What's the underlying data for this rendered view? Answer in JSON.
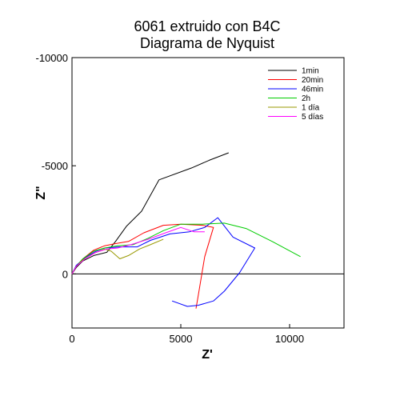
{
  "chart_data": {
    "type": "line",
    "title": "6061 extruido con B4C",
    "subtitle": "Diagrama de Nyquist",
    "xlabel": "Z'",
    "ylabel": "Z\"",
    "xlim": [
      0,
      12500
    ],
    "ylim": [
      2500,
      -10000
    ],
    "x_ticks": [
      0,
      5000,
      10000
    ],
    "x_tick_labels": [
      "0",
      "5000",
      "10000"
    ],
    "y_ticks": [
      -10000,
      -5000,
      0
    ],
    "y_tick_labels": [
      "-10000",
      "-5000",
      "0"
    ],
    "zero_line": 0,
    "grid": false,
    "legend_position": "top-right",
    "series": [
      {
        "name": "1min",
        "color": "#000000",
        "points": [
          [
            0,
            0
          ],
          [
            200,
            -300
          ],
          [
            500,
            -600
          ],
          [
            1000,
            -850
          ],
          [
            1600,
            -1000
          ],
          [
            2000,
            -1500
          ],
          [
            2500,
            -2200
          ],
          [
            3200,
            -2900
          ],
          [
            4000,
            -4350
          ],
          [
            5500,
            -4900
          ],
          [
            6300,
            -5250
          ],
          [
            7200,
            -5600
          ]
        ]
      },
      {
        "name": "20min",
        "color": "#ff0000",
        "points": [
          [
            0,
            0
          ],
          [
            200,
            -350
          ],
          [
            500,
            -700
          ],
          [
            1000,
            -1100
          ],
          [
            1500,
            -1300
          ],
          [
            2000,
            -1400
          ],
          [
            2600,
            -1500
          ],
          [
            3300,
            -1900
          ],
          [
            4200,
            -2250
          ],
          [
            5000,
            -2300
          ],
          [
            6000,
            -2250
          ],
          [
            6500,
            -2150
          ],
          [
            6100,
            -800
          ],
          [
            5800,
            1000
          ],
          [
            5700,
            1600
          ]
        ]
      },
      {
        "name": "46min",
        "color": "#0000ff",
        "points": [
          [
            0,
            0
          ],
          [
            200,
            -400
          ],
          [
            600,
            -750
          ],
          [
            1100,
            -1050
          ],
          [
            1500,
            -1200
          ],
          [
            2200,
            -1250
          ],
          [
            3000,
            -1250
          ],
          [
            3600,
            -1550
          ],
          [
            4500,
            -1850
          ],
          [
            5400,
            -1950
          ],
          [
            6100,
            -2150
          ],
          [
            6700,
            -2600
          ],
          [
            7400,
            -1700
          ],
          [
            8400,
            -1200
          ],
          [
            7700,
            -50
          ],
          [
            7000,
            800
          ],
          [
            6500,
            1250
          ],
          [
            5800,
            1450
          ],
          [
            5300,
            1500
          ],
          [
            4600,
            1250
          ]
        ]
      },
      {
        "name": "2h",
        "color": "#00cc00",
        "points": [
          [
            0,
            0
          ],
          [
            200,
            -350
          ],
          [
            500,
            -700
          ],
          [
            1000,
            -1050
          ],
          [
            1500,
            -1200
          ],
          [
            2100,
            -1300
          ],
          [
            2800,
            -1350
          ],
          [
            3500,
            -1650
          ],
          [
            4200,
            -2000
          ],
          [
            5000,
            -2300
          ],
          [
            6000,
            -2300
          ],
          [
            7000,
            -2350
          ],
          [
            8000,
            -2100
          ],
          [
            9200,
            -1500
          ],
          [
            10500,
            -800
          ]
        ]
      },
      {
        "name": "1 día",
        "color": "#999900",
        "points": [
          [
            0,
            0
          ],
          [
            200,
            -350
          ],
          [
            500,
            -650
          ],
          [
            1000,
            -950
          ],
          [
            1500,
            -1150
          ],
          [
            1800,
            -1050
          ],
          [
            2200,
            -700
          ],
          [
            2600,
            -850
          ],
          [
            3100,
            -1150
          ],
          [
            3600,
            -1350
          ],
          [
            4200,
            -1600
          ]
        ]
      },
      {
        "name": "5 días",
        "color": "#ff00ff",
        "points": [
          [
            0,
            0
          ],
          [
            200,
            -350
          ],
          [
            600,
            -700
          ],
          [
            1100,
            -1000
          ],
          [
            1600,
            -1150
          ],
          [
            2100,
            -1200
          ],
          [
            2700,
            -1350
          ],
          [
            3500,
            -1600
          ],
          [
            4300,
            -1900
          ],
          [
            5000,
            -2150
          ],
          [
            5600,
            -1950
          ],
          [
            6100,
            -1950
          ]
        ]
      }
    ]
  }
}
